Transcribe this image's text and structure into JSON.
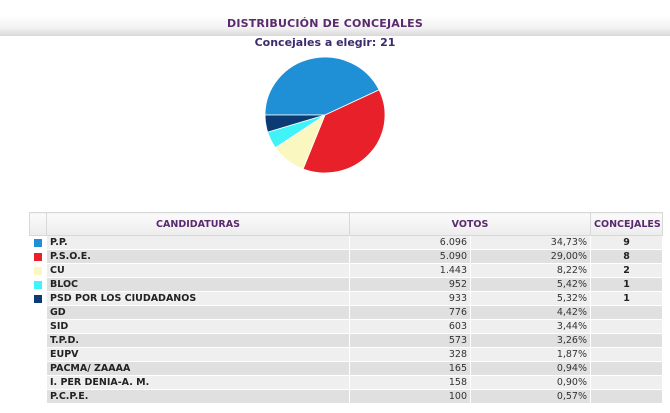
{
  "header": {
    "title": "DISTRIBUCIÓN DE CONCEJALES",
    "subtitle": "Concejales a elegir: 21"
  },
  "table": {
    "headers": {
      "candidaturas": "CANDIDATURAS",
      "votos": "VOTOS",
      "concejales": "CONCEJALES"
    },
    "rows": [
      {
        "name": "P.P.",
        "votes": "6.096",
        "pct": "34,73%",
        "seats": "9",
        "color": "#1f8fd6"
      },
      {
        "name": "P.S.O.E.",
        "votes": "5.090",
        "pct": "29,00%",
        "seats": "8",
        "color": "#e8202a"
      },
      {
        "name": "CU",
        "votes": "1.443",
        "pct": "8,22%",
        "seats": "2",
        "color": "#fbf7c0"
      },
      {
        "name": "BLOC",
        "votes": "952",
        "pct": "5,42%",
        "seats": "1",
        "color": "#3ff3f8"
      },
      {
        "name": "PSD POR LOS CIUDADANOS",
        "votes": "933",
        "pct": "5,32%",
        "seats": "1",
        "color": "#0c3a73"
      },
      {
        "name": "GD",
        "votes": "776",
        "pct": "4,42%",
        "seats": "",
        "color": ""
      },
      {
        "name": "SID",
        "votes": "603",
        "pct": "3,44%",
        "seats": "",
        "color": ""
      },
      {
        "name": "T.P.D.",
        "votes": "573",
        "pct": "3,26%",
        "seats": "",
        "color": ""
      },
      {
        "name": "EUPV",
        "votes": "328",
        "pct": "1,87%",
        "seats": "",
        "color": ""
      },
      {
        "name": "PACMA/ ZAAAA",
        "votes": "165",
        "pct": "0,94%",
        "seats": "",
        "color": ""
      },
      {
        "name": "I. PER DENIA-A. M.",
        "votes": "158",
        "pct": "0,90%",
        "seats": "",
        "color": ""
      },
      {
        "name": "P.C.P.E.",
        "votes": "100",
        "pct": "0,57%",
        "seats": "",
        "color": ""
      }
    ]
  },
  "chart_data": {
    "type": "pie",
    "categories": [
      "P.P.",
      "P.S.O.E.",
      "CU",
      "BLOC",
      "PSD POR LOS CIUDADANOS"
    ],
    "values": [
      9,
      8,
      2,
      1,
      1
    ],
    "colors": [
      "#1f8fd6",
      "#e8202a",
      "#fbf7c0",
      "#3ff3f8",
      "#0c3a73"
    ]
  }
}
